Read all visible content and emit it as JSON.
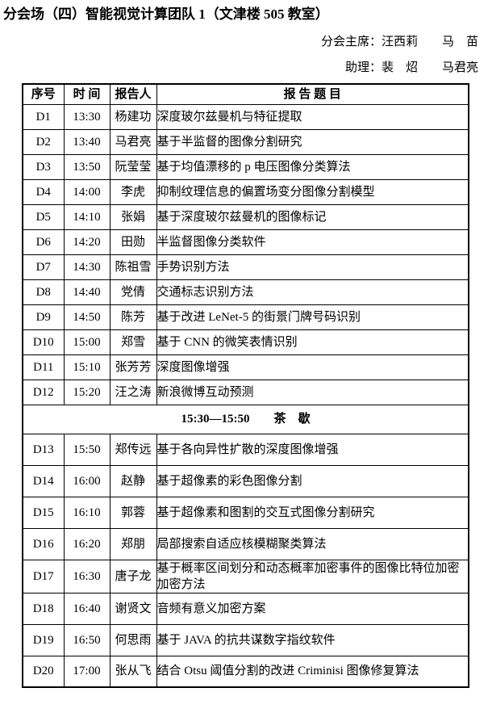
{
  "page": {
    "title": "分会场（四）智能视觉计算团队 1（文津楼 505 教室）",
    "chair_line": "分会主席：汪西莉　　马　苗",
    "assistant_line": "助理：裴　炤　　马君亮"
  },
  "table": {
    "headers": [
      "序号",
      "时 间",
      "报告人",
      "报 告 题 目"
    ],
    "rows": [
      {
        "type": "talk",
        "id": "D1",
        "time": "13:30",
        "speaker": "杨建功",
        "title": "深度玻尔兹曼机与特征提取"
      },
      {
        "type": "talk",
        "id": "D2",
        "time": "13:40",
        "speaker": "马君亮",
        "title": "基于半监督的图像分割研究"
      },
      {
        "type": "talk",
        "id": "D3",
        "time": "13:50",
        "speaker": "阮莹莹",
        "title": "基于均值漂移的 p 电压图像分类算法"
      },
      {
        "type": "talk",
        "id": "D4",
        "time": "14:00",
        "speaker": "李虎",
        "title": "抑制纹理信息的偏置场变分图像分割模型"
      },
      {
        "type": "talk",
        "id": "D5",
        "time": "14:10",
        "speaker": "张娟",
        "title": "基于深度玻尔兹曼机的图像标记"
      },
      {
        "type": "talk",
        "id": "D6",
        "time": "14:20",
        "speaker": "田勋",
        "title": "半监督图像分类软件"
      },
      {
        "type": "talk",
        "id": "D7",
        "time": "14:30",
        "speaker": "陈祖雪",
        "title": "手势识别方法"
      },
      {
        "type": "talk",
        "id": "D8",
        "time": "14:40",
        "speaker": "党倩",
        "title": "交通标志识别方法"
      },
      {
        "type": "talk",
        "id": "D9",
        "time": "14:50",
        "speaker": "陈芳",
        "title": "基于改进 LeNet-5 的街景门牌号码识别"
      },
      {
        "type": "talk",
        "id": "D10",
        "time": "15:00",
        "speaker": "郑雪",
        "title": "基于 CNN 的微笑表情识别"
      },
      {
        "type": "talk",
        "id": "D11",
        "time": "15:10",
        "speaker": "张芳芳",
        "title": "深度图像增强"
      },
      {
        "type": "talk",
        "id": "D12",
        "time": "15:20",
        "speaker": "汪之涛",
        "title": "新浪微博互动预测"
      },
      {
        "type": "break",
        "text": "15:30—15:50　　茶　歇"
      },
      {
        "type": "talk",
        "id": "D13",
        "time": "15:50",
        "speaker": "郑传远",
        "title": "基于各向异性扩散的深度图像增强"
      },
      {
        "type": "talk",
        "id": "D14",
        "time": "16:00",
        "speaker": "赵静",
        "title": "基于超像素的彩色图像分割"
      },
      {
        "type": "talk",
        "id": "D15",
        "time": "16:10",
        "speaker": "郭蓉",
        "title": "基于超像素和图割的交互式图像分割研究"
      },
      {
        "type": "talk",
        "id": "D16",
        "time": "16:20",
        "speaker": "郑朋",
        "title": "局部搜索自适应核模糊聚类算法"
      },
      {
        "type": "talk",
        "id": "D17",
        "time": "16:30",
        "speaker": "唐子龙",
        "title": "基于概率区间划分和动态概率加密事件的图像比特位加密加密方法"
      },
      {
        "type": "talk",
        "id": "D18",
        "time": "16:40",
        "speaker": "谢贤文",
        "title": "音频有意义加密方案"
      },
      {
        "type": "talk",
        "id": "D19",
        "time": "16:50",
        "speaker": "何思雨",
        "title": "基于 JAVA 的抗共谋数字指纹软件"
      },
      {
        "type": "talk",
        "id": "D20",
        "time": "17:00",
        "speaker": "张从飞",
        "title": "结合 Otsu 阈值分割的改进 Criminisi 图像修复算法"
      }
    ]
  }
}
